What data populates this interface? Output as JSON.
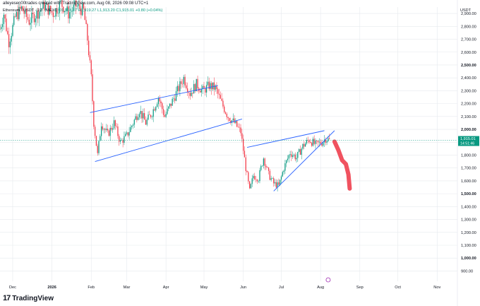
{
  "header": {
    "attribution": "alleyesen00trades created with TradingView.com, Aug 08, 2026 09:08 UTC+1",
    "symbol_line": "Ethereum / USDT · 1D · MEXC",
    "ohlc": {
      "open": "O1,914.17",
      "high": "H1,919.27",
      "low": "L1,913.20",
      "close": "C1,915.01",
      "change": "+0.80 (+0.04%)"
    }
  },
  "footer": {
    "brand": "TradingView",
    "logo": "17"
  },
  "colors": {
    "up": "#089981",
    "down": "#f23645",
    "line": "#2962ff",
    "marker": "#f0525f",
    "grid": "#e6e9ee"
  },
  "chart_data": {
    "type": "candlestick",
    "y_unit": "USDT",
    "ylim": [
      820,
      2950
    ],
    "yticks": [
      900,
      1000,
      1100,
      1200,
      1300,
      1400,
      1500,
      1600,
      1700,
      1800,
      1900,
      2000,
      2100,
      2200,
      2300,
      2400,
      2500,
      2600,
      2700,
      2800,
      2900
    ],
    "ytick_labels": [
      "900.00",
      "1,000.00",
      "1,100.00",
      "1,200.00",
      "1,300.00",
      "1,400.00",
      "1,500.00",
      "1,600.00",
      "1,700.00",
      "1,800.00",
      "1,900.00",
      "2,000.00",
      "2,100.00",
      "2,200.00",
      "2,300.00",
      "2,400.00",
      "2,500.00",
      "2,600.00",
      "2,700.00",
      "2,800.00",
      "2,900.00"
    ],
    "bold_ticks": [
      1000,
      1500,
      2000,
      2500
    ],
    "x_labels": [
      {
        "label": "Dec",
        "date": "2025-12-01",
        "bold": false
      },
      {
        "label": "2026",
        "date": "2026-01-01",
        "bold": true
      },
      {
        "label": "Feb",
        "date": "2026-02-01",
        "bold": false
      },
      {
        "label": "Mar",
        "date": "2026-03-01",
        "bold": false
      },
      {
        "label": "Apr",
        "date": "2026-04-01",
        "bold": false
      },
      {
        "label": "May",
        "date": "2026-05-01",
        "bold": false
      },
      {
        "label": "Jun",
        "date": "2026-06-01",
        "bold": false
      },
      {
        "label": "Jul",
        "date": "2026-07-01",
        "bold": false
      },
      {
        "label": "Aug",
        "date": "2026-08-01",
        "bold": false
      },
      {
        "label": "Sep",
        "date": "2026-09-01",
        "bold": false
      },
      {
        "label": "Oct",
        "date": "2026-10-01",
        "bold": false
      },
      {
        "label": "Nov",
        "date": "2026-11-01",
        "bold": false
      }
    ],
    "x_range": [
      "2025-11-21",
      "2026-11-17"
    ],
    "last_price": {
      "value": 1915.01,
      "label": "1,915.01",
      "countdown": "14:51:46"
    },
    "price_path": [
      [
        "2025-11-21",
        2780
      ],
      [
        "2025-11-24",
        2900
      ],
      [
        "2025-11-28",
        2680
      ],
      [
        "2025-12-03",
        2870
      ],
      [
        "2025-12-08",
        2940
      ],
      [
        "2025-12-14",
        2840
      ],
      [
        "2025-12-20",
        2900
      ],
      [
        "2025-12-26",
        2960
      ],
      [
        "2026-01-02",
        2900
      ],
      [
        "2026-01-08",
        2980
      ],
      [
        "2026-01-14",
        2900
      ],
      [
        "2026-01-20",
        2960
      ],
      [
        "2026-01-26",
        2920
      ],
      [
        "2026-01-29",
        2700
      ],
      [
        "2026-02-01",
        2400
      ],
      [
        "2026-02-03",
        2050
      ],
      [
        "2026-02-06",
        1800
      ],
      [
        "2026-02-09",
        2050
      ],
      [
        "2026-02-14",
        1960
      ],
      [
        "2026-02-19",
        2050
      ],
      [
        "2026-02-24",
        1900
      ],
      [
        "2026-03-01",
        1950
      ],
      [
        "2026-03-06",
        2050
      ],
      [
        "2026-03-11",
        2150
      ],
      [
        "2026-03-16",
        2050
      ],
      [
        "2026-03-21",
        2130
      ],
      [
        "2026-03-26",
        2250
      ],
      [
        "2026-03-31",
        2100
      ],
      [
        "2026-04-05",
        2200
      ],
      [
        "2026-04-10",
        2300
      ],
      [
        "2026-04-15",
        2400
      ],
      [
        "2026-04-20",
        2280
      ],
      [
        "2026-04-25",
        2350
      ],
      [
        "2026-04-30",
        2300
      ],
      [
        "2026-05-05",
        2340
      ],
      [
        "2026-05-10",
        2320
      ],
      [
        "2026-05-15",
        2200
      ],
      [
        "2026-05-20",
        2100
      ],
      [
        "2026-05-25",
        2050
      ],
      [
        "2026-05-30",
        1980
      ],
      [
        "2026-06-03",
        1700
      ],
      [
        "2026-06-06",
        1520
      ],
      [
        "2026-06-09",
        1640
      ],
      [
        "2026-06-13",
        1620
      ],
      [
        "2026-06-17",
        1780
      ],
      [
        "2026-06-21",
        1650
      ],
      [
        "2026-06-25",
        1580
      ],
      [
        "2026-06-29",
        1560
      ],
      [
        "2026-07-03",
        1700
      ],
      [
        "2026-07-08",
        1820
      ],
      [
        "2026-07-13",
        1780
      ],
      [
        "2026-07-18",
        1870
      ],
      [
        "2026-07-23",
        1920
      ],
      [
        "2026-07-28",
        1880
      ],
      [
        "2026-08-02",
        1900
      ],
      [
        "2026-08-05",
        1930
      ],
      [
        "2026-08-08",
        1915
      ]
    ],
    "trendlines": [
      {
        "name": "channel-upper",
        "from": [
          "2026-01-31",
          2130
        ],
        "to": [
          "2026-05-12",
          2340
        ]
      },
      {
        "name": "channel-lower",
        "from": [
          "2026-02-04",
          1750
        ],
        "to": [
          "2026-05-31",
          2080
        ]
      },
      {
        "name": "wedge-upper",
        "from": [
          "2026-06-04",
          1860
        ],
        "to": [
          "2026-08-04",
          1990
        ]
      },
      {
        "name": "wedge-lower",
        "from": [
          "2026-06-25",
          1520
        ],
        "to": [
          "2026-08-12",
          1990
        ]
      }
    ],
    "projection": [
      [
        "2026-08-12",
        1905
      ],
      [
        "2026-08-15",
        1840
      ],
      [
        "2026-08-18",
        1760
      ],
      [
        "2026-08-21",
        1730
      ],
      [
        "2026-08-23",
        1650
      ],
      [
        "2026-08-24",
        1540
      ]
    ]
  }
}
